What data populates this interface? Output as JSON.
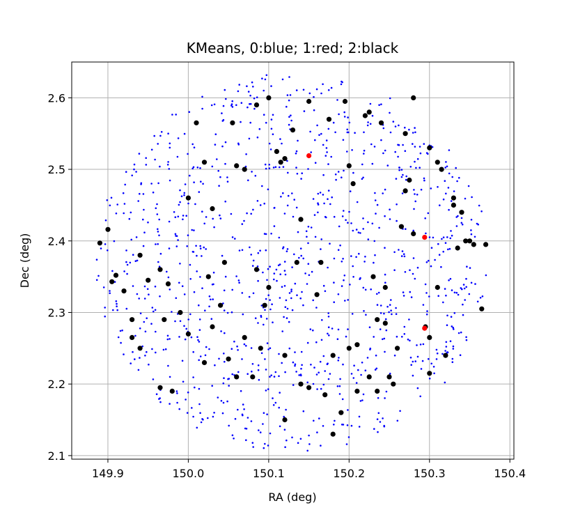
{
  "chart_data": {
    "type": "scatter",
    "title": "KMeans, 0:blue; 1:red; 2:black",
    "xlabel": "RA (deg)",
    "ylabel": "Dec (deg)",
    "xlim": [
      149.855,
      150.405
    ],
    "ylim": [
      2.095,
      2.65
    ],
    "xticks": [
      149.9,
      150.0,
      150.1,
      150.2,
      150.3,
      150.4
    ],
    "xtick_labels": [
      "149.9",
      "150.0",
      "150.1",
      "150.2",
      "150.3",
      "150.4"
    ],
    "yticks": [
      2.1,
      2.2,
      2.3,
      2.4,
      2.5,
      2.6
    ],
    "ytick_labels": [
      "2.1",
      "2.2",
      "2.3",
      "2.4",
      "2.5",
      "2.6"
    ],
    "grid": true,
    "field": {
      "center": [
        150.13,
        2.37
      ],
      "radius": 0.245
    },
    "series": [
      {
        "cluster": 0,
        "color": "#0000ff",
        "marker_size": "small",
        "count_estimate": 1100,
        "points": "densely scattered across the circular field"
      },
      {
        "cluster": 1,
        "color": "#ff0000",
        "marker_size": "medium",
        "x": [
          150.15,
          150.294,
          150.294
        ],
        "y": [
          2.519,
          2.405,
          2.278
        ]
      },
      {
        "cluster": 2,
        "color": "#000000",
        "marker_size": "medium",
        "x": [
          149.89,
          149.9,
          149.905,
          149.91,
          149.92,
          149.93,
          149.94,
          149.95,
          149.965,
          149.975,
          149.99,
          150.0,
          150.02,
          150.03,
          150.045,
          150.06,
          150.07,
          150.085,
          150.1,
          150.11,
          150.12,
          150.13,
          150.14,
          150.15,
          150.165,
          150.18,
          150.19,
          150.2,
          150.21,
          150.225,
          150.235,
          150.245,
          150.26,
          150.27,
          150.28,
          150.3,
          150.31,
          150.32,
          150.335,
          150.35,
          150.365,
          149.93,
          149.965,
          150.02,
          150.05,
          150.08,
          150.12,
          150.15,
          150.2,
          150.23,
          150.27,
          150.3,
          150.33,
          150.245,
          150.1,
          150.06,
          150.03,
          150.07,
          150.14,
          150.18,
          150.21,
          150.235,
          150.25,
          150.275,
          150.31,
          149.97,
          150.0,
          150.04,
          150.095,
          150.16,
          150.22,
          150.28,
          150.34,
          149.94,
          150.01,
          150.055,
          150.115,
          150.175,
          150.225,
          150.255,
          150.295,
          150.33,
          150.37,
          149.98,
          150.025,
          150.085,
          150.135,
          150.205,
          150.265,
          150.315,
          150.355,
          150.09,
          150.12,
          150.17,
          150.195,
          150.24,
          150.3,
          150.345
        ],
        "y": [
          2.397,
          2.416,
          2.343,
          2.352,
          2.33,
          2.29,
          2.38,
          2.345,
          2.36,
          2.34,
          2.3,
          2.46,
          2.51,
          2.445,
          2.37,
          2.505,
          2.5,
          2.59,
          2.6,
          2.525,
          2.515,
          2.555,
          2.43,
          2.595,
          2.37,
          2.24,
          2.16,
          2.505,
          2.255,
          2.21,
          2.19,
          2.285,
          2.25,
          2.47,
          2.41,
          2.265,
          2.335,
          2.24,
          2.39,
          2.4,
          2.305,
          2.265,
          2.195,
          2.23,
          2.235,
          2.21,
          2.24,
          2.195,
          2.25,
          2.35,
          2.55,
          2.53,
          2.46,
          2.335,
          2.335,
          2.21,
          2.28,
          2.265,
          2.2,
          2.13,
          2.19,
          2.29,
          2.21,
          2.485,
          2.51,
          2.29,
          2.27,
          2.31,
          2.31,
          2.325,
          2.575,
          2.6,
          2.44,
          2.25,
          2.565,
          2.565,
          2.51,
          2.57,
          2.58,
          2.2,
          2.28,
          2.45,
          2.395,
          2.19,
          2.35,
          2.36,
          2.37,
          2.48,
          2.42,
          2.5,
          2.395,
          2.25,
          2.15,
          2.185,
          2.595,
          2.565,
          2.215,
          2.4
        ]
      }
    ]
  }
}
